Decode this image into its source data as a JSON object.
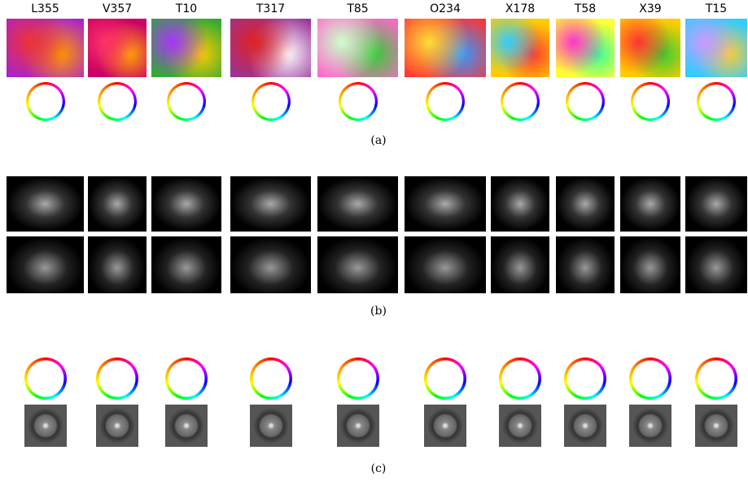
{
  "figure": {
    "columns": [
      "L355",
      "V357",
      "T10",
      "T317",
      "T85",
      "O234",
      "X178",
      "T58",
      "X39",
      "T15"
    ],
    "captions": [
      "(a)",
      "(b)",
      "(c)"
    ]
  }
}
